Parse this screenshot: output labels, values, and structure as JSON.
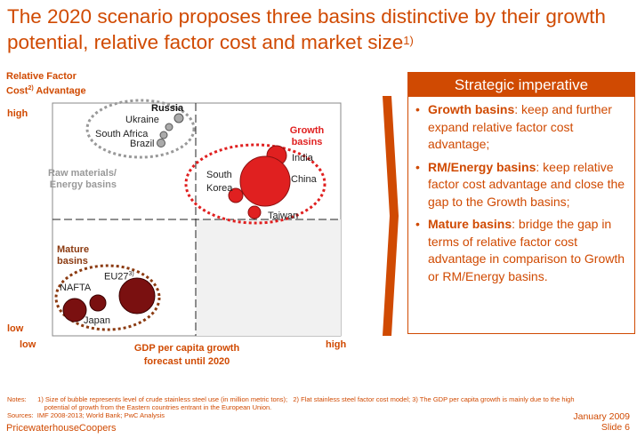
{
  "title": {
    "main": "The 2020 scenario proposes three basins distinctive by their growth potential, relative factor cost and market size",
    "sup": "1)"
  },
  "chart": {
    "y_axis_title": {
      "line1": "Relative Factor",
      "line2_pre": "Cost",
      "line2_sup": "2)",
      "line2_post": " Advantage"
    },
    "y_high": "high",
    "y_low": "low",
    "x_low": "low",
    "x_high": "high",
    "x_axis_title": {
      "line1": "GDP per capita growth",
      "line2": "forecast until 2020"
    },
    "clusters": {
      "raw": {
        "line1": "Raw materials/",
        "line2": "Energy basins"
      },
      "growth": {
        "line1": "Growth",
        "line2": "basins"
      },
      "mature": {
        "line1": "Mature",
        "line2": "basins"
      }
    },
    "countries": {
      "russia": "Russia",
      "ukraine": "Ukraine",
      "south_africa": "South Africa",
      "brazil": "Brazil",
      "india": "India",
      "china": "China",
      "south_korea_1": "South",
      "south_korea_2": "Korea",
      "taiwan": "Taiwan",
      "eu27": "EU27",
      "eu27_sup": "3)",
      "nafta": "NAFTA",
      "japan": "Japan"
    },
    "colors": {
      "accent": "#d04a02",
      "growth": "#e02020",
      "raw": "#999999",
      "mature": "#7a1010"
    }
  },
  "panel": {
    "header": "Strategic imperative",
    "items": [
      {
        "bold": "Growth basins",
        "text": ": keep and further expand relative factor cost advantage;"
      },
      {
        "bold": "RM/Energy basins",
        "text": ": keep relative factor cost advantage and close the gap to the Growth basins;"
      },
      {
        "bold": "Mature basins",
        "text": ": bridge the gap in terms of relative factor cost advantage in comparison to Growth or RM/Energy basins."
      }
    ]
  },
  "notes": {
    "line1": "Notes:      1) Size of bubble represents level of crude stainless steel use (in million metric tons);   2) Flat stainless steel factor cost model; 3) The GDP per capita growth is mainly due to the high",
    "line2": "                    potential of growth from the Eastern countries entrant in the European Union.",
    "line3": "Sources:  IMF 2008-2013; World Bank; PwC Analysis"
  },
  "footer": {
    "company": "PricewaterhouseCoopers",
    "date": "January 2009",
    "slide": "Slide 6"
  }
}
